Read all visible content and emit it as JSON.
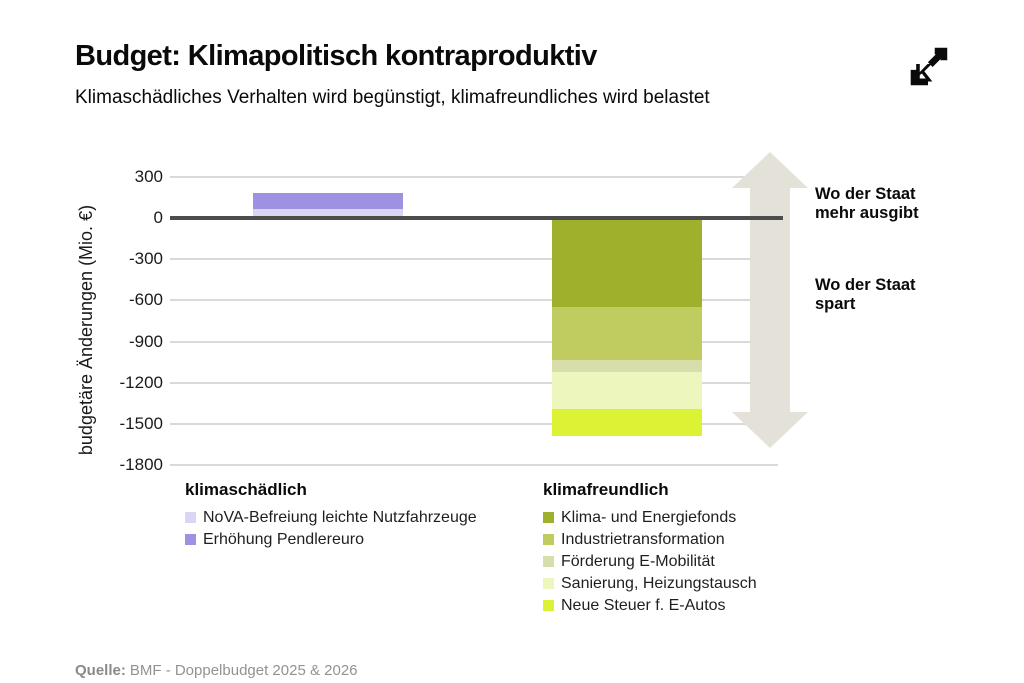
{
  "header": {
    "title": "Budget: Klimapolitisch kontraproduktiv",
    "subtitle": "Klimaschädliches Verhalten wird begünstigt, klimafreundliches wird belastet"
  },
  "annotations": {
    "spend_more": "Wo der Staat\nmehr ausgibt",
    "save": "Wo der Staat\nspart"
  },
  "source": {
    "label": "Quelle:",
    "text": "BMF - Doppelbudget 2025 & 2026"
  },
  "icons": {
    "logo": "kontrast-k-logo",
    "arrow": "up-down-arrow"
  },
  "colors": {
    "gridline": "#d9d9d9",
    "zero_line": "#4d4d4d",
    "arrow": "#e4e1d8",
    "text": "#0a0a0a",
    "source_gray": "#929292"
  },
  "chart_data": {
    "type": "bar",
    "stacked": true,
    "ylabel": "budgetäre Änderungen (Mio. €)",
    "unit": "Mio. €",
    "ylim": [
      300,
      -1800
    ],
    "yticks": [
      300,
      0,
      -300,
      -600,
      -900,
      -1200,
      -1500,
      -1800
    ],
    "grid": true,
    "legend_position": "bottom",
    "categories": [
      "klimaschädlich",
      "klimafreundlich"
    ],
    "groups": [
      {
        "label": "klimaschädlich",
        "segments": [
          {
            "name": "NoVA-Befreiung leichte Nutzfahrzeuge",
            "value": 65,
            "color": "#dad5f2"
          },
          {
            "name": "Erhöhung Pendlereuro",
            "value": 120,
            "color": "#9e91e1"
          }
        ]
      },
      {
        "label": "klimafreundlich",
        "segments": [
          {
            "name": "Klima- und Energiefonds",
            "value": -650,
            "color": "#9fb02c"
          },
          {
            "name": "Industrietransformation",
            "value": -385,
            "color": "#c0cc60"
          },
          {
            "name": "Förderung E-Mobilität",
            "value": -90,
            "color": "#d7deab"
          },
          {
            "name": "Sanierung, Heizungstausch",
            "value": -265,
            "color": "#edf6bd"
          },
          {
            "name": "Neue Steuer f. E-Autos",
            "value": -200,
            "color": "#dcf335"
          }
        ]
      }
    ]
  }
}
